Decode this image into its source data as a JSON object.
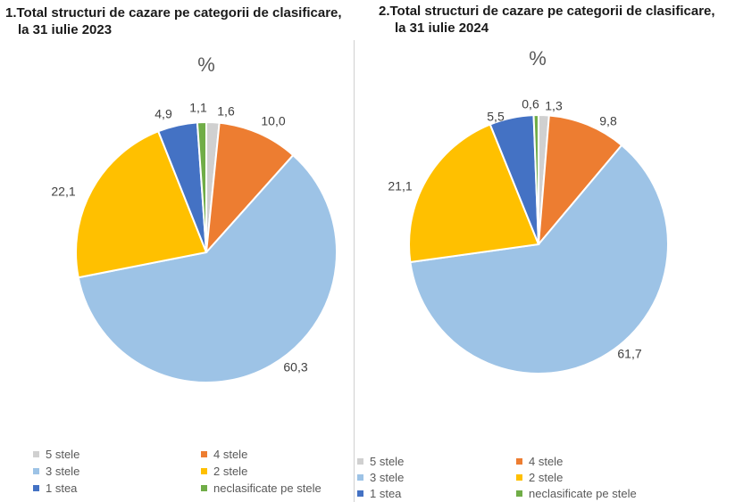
{
  "colors": {
    "5 stele": "#d0d0d0",
    "4 stele": "#ed7d31",
    "3 stele": "#9dc3e6",
    "2 stele": "#ffc000",
    "1 stea": "#4472c4",
    "neclasificate pe stele": "#70ad47"
  },
  "chart_data": [
    {
      "type": "pie",
      "title": [
        "1.Total structuri de cazare pe categorii de clasificare,",
        "la 31 iulie 2023"
      ],
      "unit": "%",
      "categories": [
        "5 stele",
        "4 stele",
        "3 stele",
        "2 stele",
        "1 stea",
        "neclasificate pe stele"
      ],
      "values": [
        1.6,
        10.0,
        60.3,
        22.1,
        4.9,
        1.1
      ],
      "value_labels": [
        "1,6",
        "10,0",
        "60,3",
        "22,1",
        "4,9",
        "1,1"
      ],
      "legend": [
        "5 stele",
        "4 stele",
        "3 stele",
        "2 stele",
        "1 stea",
        "neclasificate pe stele"
      ],
      "legend_position": "bottom"
    },
    {
      "type": "pie",
      "title": [
        "2.Total structuri de cazare pe categorii de clasificare,",
        "la 31 iulie 2024"
      ],
      "unit": "%",
      "categories": [
        "5 stele",
        "4 stele",
        "3 stele",
        "2 stele",
        "1 stea",
        "neclasificate pe stele"
      ],
      "values": [
        1.3,
        9.8,
        61.7,
        21.1,
        5.5,
        0.6
      ],
      "value_labels": [
        "1,3",
        "9,8",
        "61,7",
        "21,1",
        "5,5",
        "0,6"
      ],
      "legend": [
        "5 stele",
        "4 stele",
        "3 stele",
        "2 stele",
        "1 stea",
        "neclasificate pe stele"
      ],
      "legend_position": "bottom"
    }
  ]
}
